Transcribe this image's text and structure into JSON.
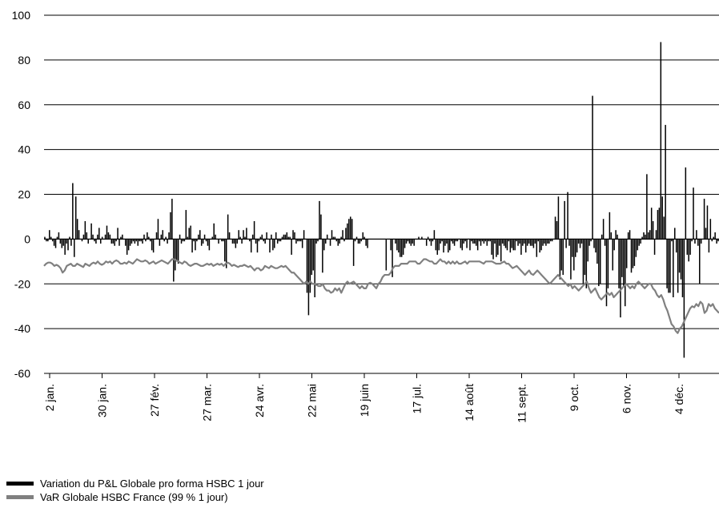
{
  "chart_data": {
    "type": "bar",
    "title": "",
    "xlabel": "",
    "ylabel": "",
    "ylim": [
      -60,
      100
    ],
    "yticks": [
      -60,
      -40,
      -20,
      0,
      20,
      40,
      60,
      80,
      100
    ],
    "grid": true,
    "legend_position": "bottom-left",
    "x_tick_labels": [
      "2 jan.",
      "30 jan.",
      "27 fév.",
      "27 mar.",
      "24 avr.",
      "22 mai",
      "19 juin",
      "17 jul.",
      "14 août",
      "11 sept.",
      "9 oct.",
      "6 nov.",
      "4 déc."
    ],
    "series": [
      {
        "name": "Variation du P&L Globale pro forma HSBC 1 jour",
        "type": "bar",
        "color": "#000000",
        "values": [
          1,
          -1,
          -1,
          4,
          1,
          -1,
          -3,
          -4,
          1,
          3,
          -2,
          -4,
          -3,
          -7,
          -2,
          -5,
          1,
          -3,
          25,
          -8,
          19,
          9,
          4,
          0,
          -1,
          2,
          8,
          3,
          -2,
          0,
          7,
          2,
          -1,
          -2,
          2,
          5,
          -2,
          1,
          0,
          2,
          6,
          3,
          2,
          -2,
          -2,
          -3,
          -1,
          5,
          -3,
          1,
          2,
          0,
          -3,
          -7,
          -5,
          -3,
          -2,
          -1,
          -2,
          -1,
          -3,
          -1,
          -1,
          -2,
          2,
          -1,
          3,
          1,
          -1,
          -5,
          -6,
          0,
          3,
          9,
          -3,
          2,
          4,
          -1,
          1,
          -2,
          3,
          12,
          18,
          -19,
          -14,
          -10,
          -11,
          2,
          -2,
          -1,
          -1,
          13,
          1,
          5,
          6,
          -6,
          -1,
          -5,
          -1,
          2,
          4,
          -3,
          -2,
          2,
          -1,
          -3,
          -5,
          0,
          1,
          7,
          2,
          0,
          -2,
          0,
          -1,
          -1,
          -10,
          -13,
          11,
          3,
          0,
          -2,
          -2,
          -4,
          -2,
          4,
          1,
          -2,
          4,
          1,
          5,
          0,
          -1,
          -6,
          2,
          8,
          -2,
          -6,
          -1,
          1,
          2,
          -1,
          -2,
          3,
          0,
          -6,
          2,
          -5,
          -4,
          3,
          -2,
          -1,
          -1,
          1,
          2,
          2,
          3,
          1,
          1,
          -7,
          4,
          3,
          -2,
          -1,
          -1,
          -1,
          -4,
          4,
          0,
          -24,
          -34,
          -24,
          -16,
          -14,
          -26,
          -2,
          -1,
          17,
          11,
          -15,
          -5,
          -2,
          2,
          0,
          -3,
          4,
          1,
          1,
          -1,
          -3,
          -2,
          1,
          4,
          -1,
          5,
          7,
          9,
          10,
          9,
          -12,
          -1,
          1,
          -2,
          -2,
          -1,
          3,
          1,
          -3,
          -4,
          0,
          0,
          0,
          0,
          0,
          0,
          0,
          0,
          0,
          0,
          0,
          -14,
          0,
          0,
          -5,
          -17,
          0,
          -2,
          -5,
          -6,
          -8,
          -8,
          -7,
          -4,
          -2,
          -1,
          -2,
          -3,
          -2,
          -3,
          0,
          0,
          1,
          0,
          1,
          0,
          0,
          -3,
          1,
          -1,
          -3,
          -1,
          4,
          -5,
          -7,
          -5,
          -2,
          -1,
          -6,
          -3,
          -2,
          -6,
          -5,
          -1,
          -2,
          -3,
          -1,
          -1,
          0,
          -4,
          -5,
          -2,
          -1,
          -4,
          0,
          -5,
          -1,
          -2,
          -2,
          -3,
          -5,
          -1,
          -3,
          -1,
          -2,
          -1,
          -3,
          -1,
          -1,
          -7,
          -9,
          -2,
          -8,
          -7,
          -3,
          -10,
          -2,
          -3,
          -4,
          -5,
          -1,
          -6,
          -4,
          -5,
          -5,
          -1,
          -3,
          -2,
          -7,
          -3,
          -2,
          -6,
          -3,
          -2,
          -3,
          -3,
          -4,
          -2,
          -8,
          -1,
          -6,
          -5,
          -3,
          -2,
          -3,
          -2,
          -2,
          -1,
          -1,
          0,
          10,
          8,
          19,
          -18,
          -14,
          -16,
          17,
          -4,
          21,
          -3,
          -18,
          -8,
          -14,
          -8,
          -6,
          -2,
          -4,
          -2,
          -20,
          -16,
          -22,
          -10,
          -3,
          -1,
          64,
          -4,
          -6,
          -11,
          -21,
          -20,
          2,
          9,
          -3,
          -30,
          -22,
          12,
          3,
          -14,
          -5,
          4,
          2,
          -22,
          -35,
          -17,
          -21,
          -30,
          -13,
          3,
          4,
          -15,
          -13,
          -12,
          -8,
          -5,
          -3,
          -2,
          1,
          3,
          2,
          29,
          3,
          4,
          14,
          8,
          -7,
          4,
          13,
          14,
          88,
          19,
          10,
          51,
          -22,
          -24,
          -24,
          -1,
          -26,
          5,
          -6,
          -24,
          -15,
          -18,
          -26,
          -53,
          32,
          -7,
          -10,
          -7,
          -1,
          23,
          -2,
          4,
          -3,
          -20,
          -2,
          0,
          18,
          5,
          15,
          -6,
          9,
          -1,
          1,
          3,
          -2,
          -1
        ]
      },
      {
        "name": "VaR Globale HSBC France (99 % 1 jour)",
        "type": "line",
        "color": "#808080",
        "values": [
          -12,
          -11,
          -10.5,
          -10.5,
          -11,
          -12,
          -11.5,
          -12,
          -13,
          -15,
          -14,
          -12,
          -11.5,
          -11,
          -12,
          -12,
          -11,
          -11.5,
          -12,
          -12.5,
          -11,
          -11.5,
          -12,
          -11,
          -10.5,
          -11,
          -10,
          -11,
          -11.5,
          -11,
          -10,
          -10.5,
          -10,
          -11,
          -10,
          -9.5,
          -10,
          -11,
          -11,
          -10.5,
          -11,
          -10,
          -10.5,
          -11,
          -10,
          -9,
          -9.5,
          -10,
          -10,
          -9.5,
          -10,
          -11,
          -10.5,
          -10,
          -11,
          -10.5,
          -10,
          -9.5,
          -10,
          -10.5,
          -11,
          -10,
          -9,
          -9,
          -9.5,
          -10,
          -10.5,
          -11,
          -10,
          -10.5,
          -11.5,
          -12,
          -11.5,
          -11,
          -11,
          -11.5,
          -12,
          -12,
          -11.5,
          -11,
          -11.5,
          -11,
          -12,
          -11.5,
          -11,
          -11.5,
          -11,
          -12,
          -11,
          -10.5,
          -11,
          -12,
          -11.5,
          -12,
          -12.5,
          -12,
          -12,
          -11.5,
          -12,
          -12.5,
          -12,
          -13,
          -14,
          -13,
          -13,
          -14,
          -13.5,
          -12,
          -12.5,
          -13,
          -12,
          -12.5,
          -13,
          -13,
          -12.5,
          -12,
          -12.5,
          -12,
          -13,
          -14,
          -15,
          -15,
          -16,
          -17,
          -18,
          -19,
          -20,
          -19,
          -20,
          -19,
          -20,
          -20,
          -20.5,
          -21,
          -21,
          -20,
          -22,
          -23,
          -23,
          -24,
          -23.5,
          -22,
          -23,
          -22,
          -24,
          -22,
          -20,
          -19,
          -20,
          -19.5,
          -19,
          -20,
          -21,
          -22,
          -21,
          -22,
          -22,
          -20,
          -19.5,
          -20,
          -21,
          -22,
          -20,
          -19,
          -17,
          -16,
          -16,
          -16,
          -15,
          -13,
          -12,
          -12,
          -12,
          -11,
          -11,
          -11,
          -11,
          -10,
          -10,
          -10,
          -10,
          -11,
          -11,
          -10,
          -9,
          -9,
          -9.5,
          -10,
          -10,
          -11,
          -11,
          -10,
          -9,
          -10,
          -10,
          -11,
          -10,
          -11,
          -10,
          -11,
          -10,
          -11,
          -11,
          -10.5,
          -10,
          -11,
          -10,
          -10,
          -10,
          -10,
          -10,
          -10,
          -10.5,
          -11,
          -10,
          -10,
          -10,
          -10,
          -10.5,
          -11,
          -11,
          -11,
          -10.5,
          -10,
          -11,
          -11,
          -12,
          -13,
          -12.5,
          -12,
          -13,
          -14,
          -15,
          -16,
          -15,
          -14,
          -15.5,
          -16,
          -15,
          -14,
          -15,
          -16,
          -17,
          -18,
          -19,
          -20,
          -19,
          -18,
          -17,
          -16,
          -17,
          -18,
          -19,
          -20,
          -21,
          -20,
          -22,
          -21,
          -22,
          -23,
          -22,
          -21,
          -20,
          -19,
          -22,
          -24,
          -23,
          -22,
          -24,
          -26,
          -27,
          -26,
          -25,
          -24,
          -25,
          -24,
          -26,
          -25,
          -24,
          -23,
          -22,
          -21,
          -20,
          -21,
          -22,
          -21,
          -22,
          -20,
          -19,
          -20,
          -21,
          -22,
          -21,
          -20,
          -20,
          -22,
          -23,
          -25,
          -26,
          -25,
          -27,
          -30,
          -32,
          -35,
          -38,
          -39,
          -41,
          -42,
          -40,
          -39,
          -37,
          -35,
          -33,
          -31,
          -30,
          -30.5,
          -29,
          -30,
          -28,
          -29,
          -33,
          -32,
          -29,
          -30,
          -29,
          -31,
          -32,
          -33
        ]
      }
    ]
  },
  "legend": {
    "items": [
      {
        "label": "Variation du P&L Globale pro forma HSBC 1 jour",
        "color": "#000000"
      },
      {
        "label": "VaR Globale HSBC France (99 % 1 jour)",
        "color": "#808080"
      }
    ]
  }
}
